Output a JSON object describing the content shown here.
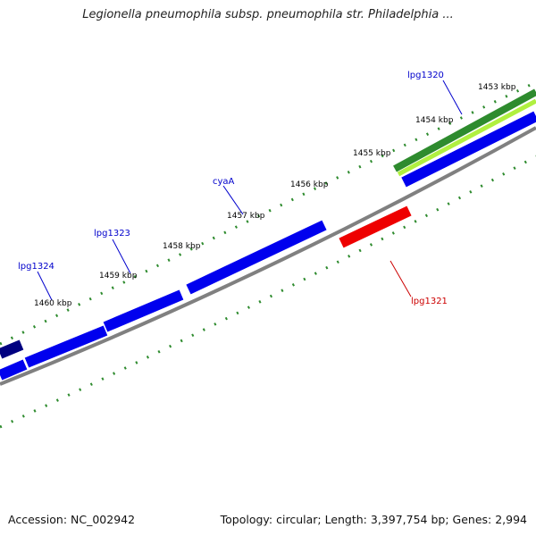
{
  "title": "Legionella pneumophila subsp. pneumophila str. Philadelphia ...",
  "footer": {
    "accession": "Accession: NC_002942",
    "summary": "Topology: circular; Length: 3,397,754 bp; Genes: 2,994"
  },
  "colors": {
    "forward_gene": "#0000ee",
    "reverse_gene": "#ee0000",
    "dark_gene": "#000080",
    "backbone": "#808080",
    "tick": "#2e8b2e",
    "gc_dark": "#2e8b2e",
    "gc_light": "#b0f040",
    "forward_label": "#0000cc",
    "reverse_label": "#cc0000"
  },
  "scale_labels": [
    {
      "text": "1453 kbp"
    },
    {
      "text": "1454 kbp"
    },
    {
      "text": "1455 kbp"
    },
    {
      "text": "1456 kbp"
    },
    {
      "text": "1457 kbp"
    },
    {
      "text": "1458 kbp"
    },
    {
      "text": "1459 kbp"
    },
    {
      "text": "1460 kbp"
    }
  ],
  "gene_labels": [
    {
      "text": "lpg1320",
      "strand": "forward"
    },
    {
      "text": "cyaA",
      "strand": "forward"
    },
    {
      "text": "lpg1323",
      "strand": "forward"
    },
    {
      "text": "lpg1324",
      "strand": "forward"
    },
    {
      "text": "lpg1321",
      "strand": "reverse"
    }
  ]
}
